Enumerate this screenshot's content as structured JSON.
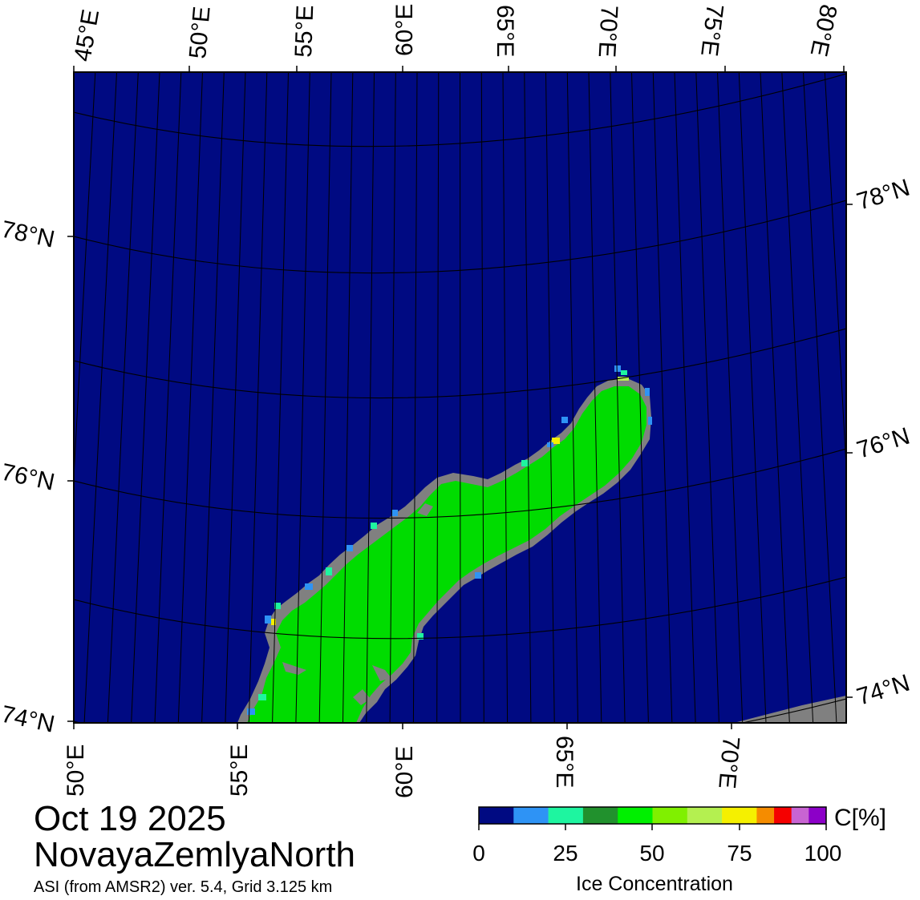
{
  "map": {
    "date": "Oct 19 2025",
    "region": "NovayaZemlyaNorth",
    "product": "ASI (from AMSR2) ver. 5.4,  Grid 3.125 km",
    "top_lon_labels": [
      "45°E",
      "50°E",
      "55°E",
      "60°E",
      "65°E",
      "70°E",
      "75°E",
      "80°E"
    ],
    "bottom_lon_labels": [
      "50°E",
      "55°E",
      "60°E",
      "65°E",
      "70°E"
    ],
    "left_lat_labels": [
      "78°N",
      "76°N",
      "74°N"
    ],
    "right_lat_labels": [
      "78°N",
      "76°N",
      "74°N"
    ],
    "colors": {
      "ocean_open_water": "#000a82",
      "land": "#00dc00",
      "land_coast": "#808080",
      "grid_line": "#000000"
    }
  },
  "legend": {
    "title": "Ice Concentration",
    "unit": "C[%]",
    "tick_labels": [
      "0",
      "25",
      "50",
      "75",
      "100"
    ],
    "bins": [
      {
        "from": 0,
        "to": 10,
        "color": "#000a82"
      },
      {
        "from": 10,
        "to": 20,
        "color": "#2e93f5"
      },
      {
        "from": 20,
        "to": 30,
        "color": "#1ef5a0"
      },
      {
        "from": 30,
        "to": 40,
        "color": "#21912d"
      },
      {
        "from": 40,
        "to": 50,
        "color": "#00f000"
      },
      {
        "from": 50,
        "to": 60,
        "color": "#80f000"
      },
      {
        "from": 60,
        "to": 70,
        "color": "#b4f050"
      },
      {
        "from": 70,
        "to": 80,
        "color": "#f5f000"
      },
      {
        "from": 80,
        "to": 85,
        "color": "#f58c00"
      },
      {
        "from": 85,
        "to": 90,
        "color": "#f50000"
      },
      {
        "from": 90,
        "to": 95,
        "color": "#c864d2"
      },
      {
        "from": 95,
        "to": 100,
        "color": "#8c00c8"
      }
    ]
  }
}
